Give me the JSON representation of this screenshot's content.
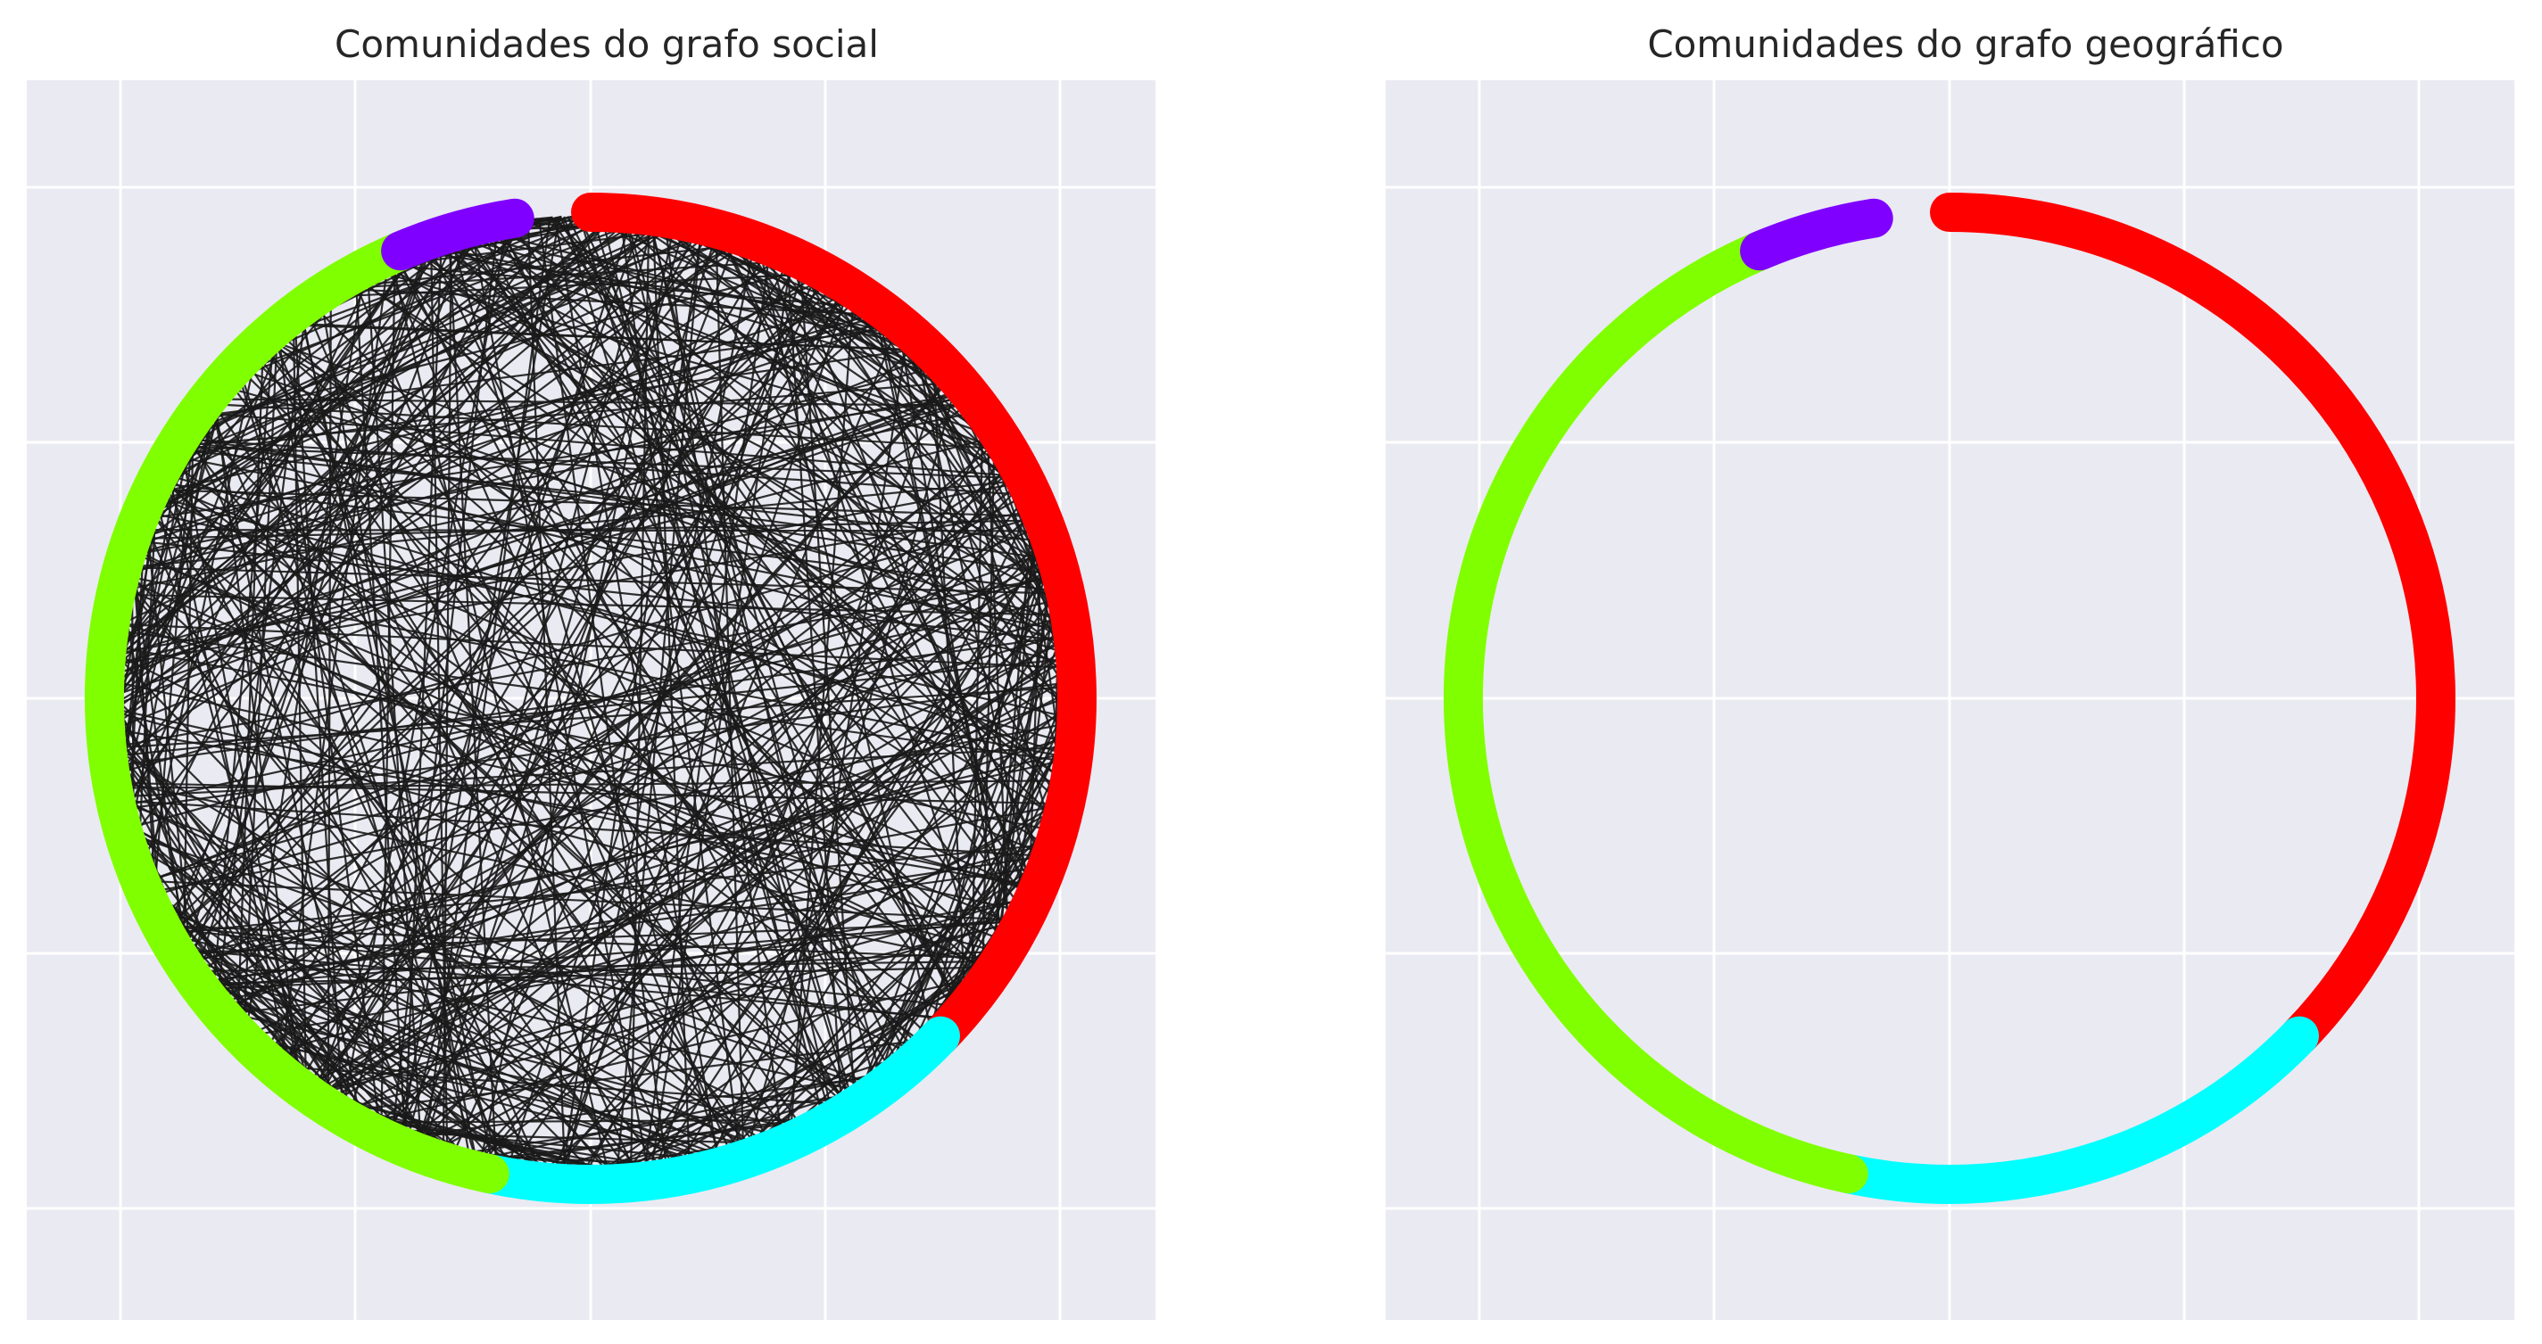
{
  "chart_data": [
    {
      "type": "network",
      "title": "Comunidades do grafo social",
      "layout": "circular",
      "show_edges": true,
      "edge_color": "#1a1a1a",
      "background": "#eaeaf2",
      "grid": true,
      "communities": [
        {
          "color": "#ff0000",
          "start_deg": 90,
          "end_deg": -44
        },
        {
          "color": "#00ffff",
          "start_deg": -44,
          "end_deg": -102
        },
        {
          "color": "#80ff00",
          "start_deg": -102,
          "end_deg": 113
        },
        {
          "color": "#7f00ff",
          "start_deg": 113,
          "end_deg": 99
        }
      ]
    },
    {
      "type": "network",
      "title": "Comunidades do grafo geográfico",
      "layout": "circular",
      "show_edges": false,
      "edge_color": "#1a1a1a",
      "background": "#eaeaf2",
      "grid": true,
      "communities": [
        {
          "color": "#ff0000",
          "start_deg": 90,
          "end_deg": -44
        },
        {
          "color": "#00ffff",
          "start_deg": -44,
          "end_deg": -102
        },
        {
          "color": "#80ff00",
          "start_deg": -102,
          "end_deg": 113
        },
        {
          "color": "#7f00ff",
          "start_deg": 113,
          "end_deg": 99
        }
      ]
    }
  ]
}
